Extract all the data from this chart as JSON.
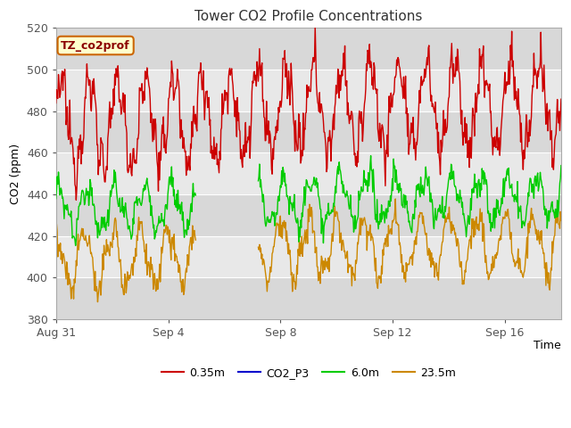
{
  "title": "Tower CO2 Profile Concentrations",
  "xlabel": "Time",
  "ylabel": "CO2 (ppm)",
  "ylim": [
    380,
    520
  ],
  "yticks": [
    380,
    400,
    420,
    440,
    460,
    480,
    500,
    520
  ],
  "xtick_labels": [
    "Aug 31",
    "Sep 4",
    "Sep 8",
    "Sep 12",
    "Sep 16"
  ],
  "xtick_days": [
    0,
    4,
    8,
    12,
    16
  ],
  "xlim": [
    0,
    18
  ],
  "annotation_text": "TZ_co2prof",
  "annotation_bg": "#ffffcc",
  "annotation_border": "#cc6600",
  "bg_color": "#ffffff",
  "plot_bg_color": "#e8e8e8",
  "grid_color": "#ffffff",
  "series": {
    "0.35m": {
      "color": "#cc0000",
      "lw": 1.0
    },
    "CO2_P3": {
      "color": "#0000cc",
      "lw": 1.0
    },
    "6.0m": {
      "color": "#00cc00",
      "lw": 1.0
    },
    "23.5m": {
      "color": "#cc8800",
      "lw": 1.0
    }
  },
  "n_points": 800,
  "end_day": 18,
  "gap_start": 5.0,
  "gap_end": 7.2,
  "red_base": 478,
  "red_daily_amp": 20,
  "red_noise_amp": 5,
  "green_base": 435,
  "green_daily_amp": 10,
  "green_noise_amp": 3,
  "orange_base": 412,
  "orange_daily_amp": 13,
  "orange_noise_amp": 3,
  "figsize": [
    6.4,
    4.8
  ],
  "dpi": 100
}
